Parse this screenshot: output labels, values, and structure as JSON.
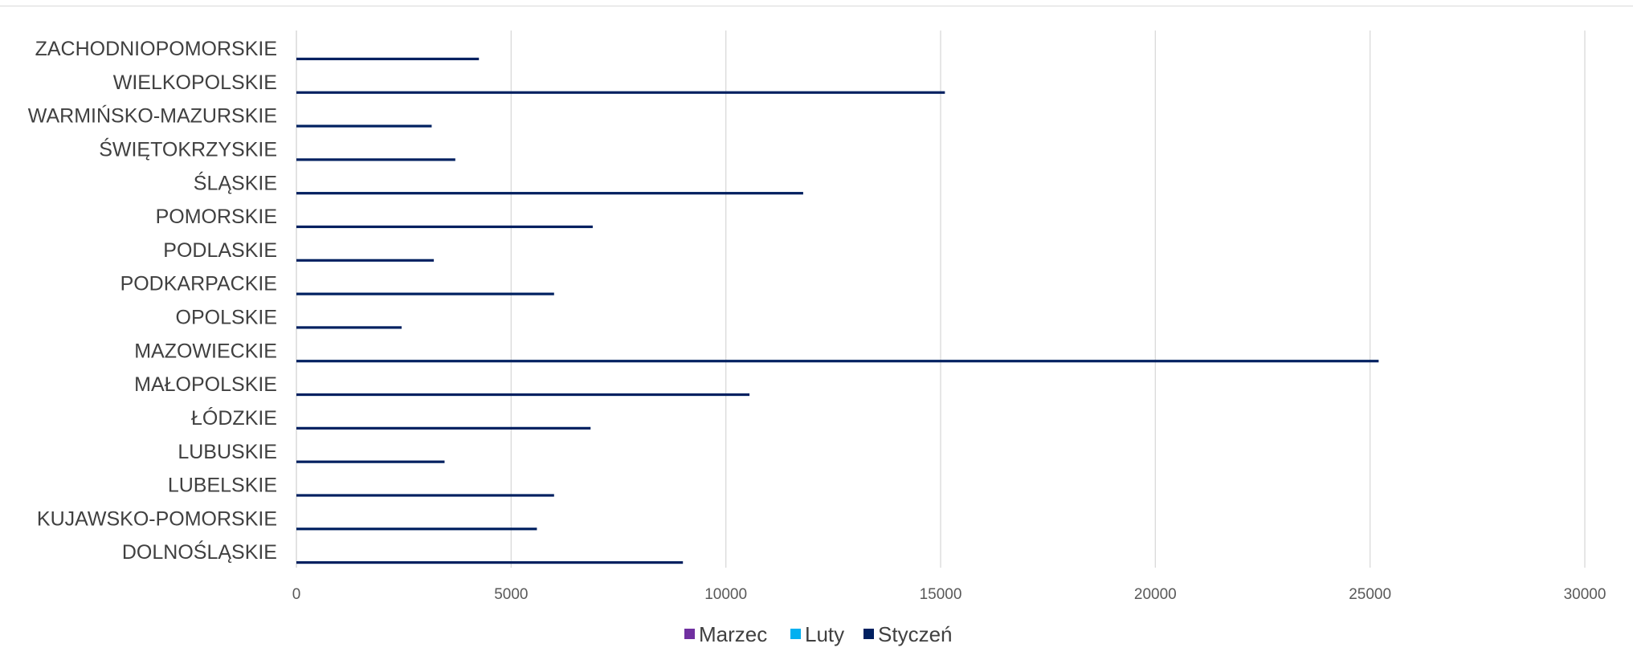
{
  "chart_data": {
    "type": "bar",
    "orientation": "horizontal",
    "categories": [
      "DOLNOŚLĄSKIE",
      "KUJAWSKO-POMORSKIE",
      "LUBELSKIE",
      "LUBUSKIE",
      "ŁÓDZKIE",
      "MAŁOPOLSKIE",
      "MAZOWIECKIE",
      "OPOLSKIE",
      "PODKARPACKIE",
      "PODLASKIE",
      "POMORSKIE",
      "ŚLĄSKIE",
      "ŚWIĘTOKRZYSKIE",
      "WARMIŃSKO-MAZURSKIE",
      "WIELKOPOLSKIE",
      "ZACHODNIOPOMORSKIE"
    ],
    "series": [
      {
        "name": "Marzec",
        "color": "#7030a0",
        "values": [
          0,
          0,
          0,
          0,
          0,
          0,
          0,
          0,
          0,
          0,
          0,
          0,
          0,
          0,
          0,
          0
        ]
      },
      {
        "name": "Luty",
        "color": "#00b0f0",
        "values": [
          0,
          0,
          0,
          0,
          0,
          0,
          0,
          0,
          0,
          0,
          0,
          0,
          0,
          0,
          0,
          0
        ]
      },
      {
        "name": "Styczeń",
        "color": "#002060",
        "values": [
          9000,
          5600,
          6000,
          3450,
          6850,
          10550,
          25200,
          2450,
          6000,
          3200,
          6900,
          11800,
          3700,
          3150,
          15100,
          4250
        ]
      }
    ],
    "xlim": [
      0,
      30000
    ],
    "ticks": [
      "0",
      "5000",
      "10000",
      "15000",
      "20000",
      "25000",
      "30000"
    ],
    "tick_values": [
      0,
      5000,
      10000,
      15000,
      20000,
      25000,
      30000
    ],
    "grid": true,
    "legend_position": "bottom",
    "title": "",
    "xlabel": "",
    "ylabel": ""
  }
}
